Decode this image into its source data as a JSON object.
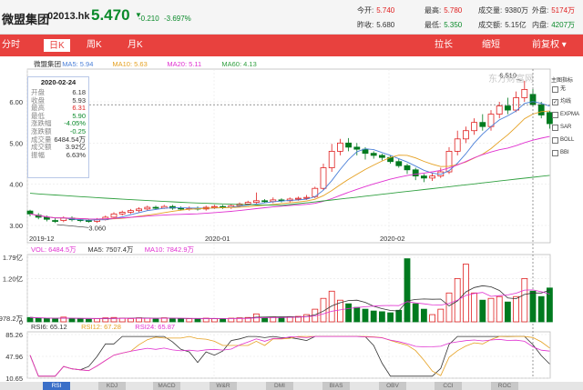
{
  "header": {
    "name": "微盟集团",
    "code": "02013.hk",
    "price": "5.470",
    "change": "-0.210",
    "change_pct": "-3.697%",
    "quotes": [
      {
        "label": "今开:",
        "value": "5.740",
        "tone": "red"
      },
      {
        "label": "最高:",
        "value": "5.780",
        "tone": "red"
      },
      {
        "label": "成交量:",
        "value": "9380万",
        "tone": "blk"
      },
      {
        "label": "外盘:",
        "value": "5174万",
        "tone": "red"
      },
      {
        "label": "昨收:",
        "value": "5.680",
        "tone": "blk"
      },
      {
        "label": "最低:",
        "value": "5.350",
        "tone": "grn"
      },
      {
        "label": "成交额:",
        "value": "5.15亿",
        "tone": "blk"
      },
      {
        "label": "内盘:",
        "value": "4207万",
        "tone": "grn"
      }
    ]
  },
  "tabs": {
    "left": [
      {
        "id": "fenshi",
        "label": "分时"
      },
      {
        "id": "rik",
        "label": "日K"
      },
      {
        "id": "zhouk",
        "label": "周K"
      },
      {
        "id": "yuek",
        "label": "月K"
      }
    ],
    "right": [
      {
        "id": "lachang",
        "label": "拉长"
      },
      {
        "id": "suoduan",
        "label": "缩短"
      },
      {
        "id": "fq",
        "label": "前复权 ▾"
      }
    ],
    "active": "rik"
  },
  "kline": {
    "legend": [
      {
        "label": "微盟集团",
        "color": "#333333"
      },
      {
        "label": "MA5: 5.94",
        "color": "#4a7fd8"
      },
      {
        "label": "MA10: 5.63",
        "color": "#e5a020"
      },
      {
        "label": "MA20: 5.11",
        "color": "#e030d0"
      },
      {
        "label": "MA60: 4.13",
        "color": "#30a040"
      }
    ],
    "y_ticks": [
      "6.00",
      "5.00",
      "4.00",
      "3.00"
    ],
    "x_ticks": [
      "2019-12",
      "2020-01",
      "2020-02"
    ],
    "max_label": "6.510",
    "min_label": "3.060",
    "watermark": "东方财富网"
  },
  "tooltip": {
    "date": "2020-02-24",
    "rows": [
      {
        "k": "开盘",
        "v": "6.18",
        "tone": "blk"
      },
      {
        "k": "收盘",
        "v": "5.93",
        "tone": "blk"
      },
      {
        "k": "最高",
        "v": "6.31",
        "tone": "red"
      },
      {
        "k": "最低",
        "v": "5.90",
        "tone": "grn"
      },
      {
        "k": "涨跌幅",
        "v": "-4.05%",
        "tone": "grn"
      },
      {
        "k": "涨跌额",
        "v": "-0.25",
        "tone": "grn"
      },
      {
        "k": "成交量",
        "v": "6484.54万",
        "tone": "blk"
      },
      {
        "k": "成交额",
        "v": "3.92亿",
        "tone": "blk"
      },
      {
        "k": "振幅",
        "v": "6.63%",
        "tone": "blk"
      }
    ]
  },
  "indicators": {
    "title": "主图指标",
    "items": [
      {
        "label": "无",
        "checked": false
      },
      {
        "label": "均线",
        "checked": true
      },
      {
        "label": "EXPMA",
        "checked": false
      },
      {
        "label": "SAR",
        "checked": false
      },
      {
        "label": "BOLL",
        "checked": false
      },
      {
        "label": "BBI",
        "checked": false
      }
    ]
  },
  "volume": {
    "legend": [
      {
        "label": "VOL: 6484.5万",
        "color": "#e030d0"
      },
      {
        "label": "MA5: 7507.4万",
        "color": "#333333"
      },
      {
        "label": "MA10: 7842.9万",
        "color": "#e030d0"
      }
    ],
    "y_ticks": [
      "1.79亿",
      "1.20亿",
      "978.2万",
      "0"
    ]
  },
  "rsi": {
    "legend": [
      {
        "label": "RSI6: 65.12",
        "color": "#333333"
      },
      {
        "label": "RSI12: 67.28",
        "color": "#e5a020"
      },
      {
        "label": "RSI24: 65.87",
        "color": "#e030d0"
      }
    ],
    "y_ticks": [
      "85.26",
      "47.96",
      "10.65"
    ]
  },
  "bottom_buttons": [
    "RSI",
    "KDJ",
    "MACD",
    "W&R",
    "DMI",
    "BIAS",
    "OBV",
    "CCI",
    "ROC"
  ],
  "colors": {
    "up": "#e02020",
    "down": "#007a1f",
    "accent": "#e8413e"
  }
}
